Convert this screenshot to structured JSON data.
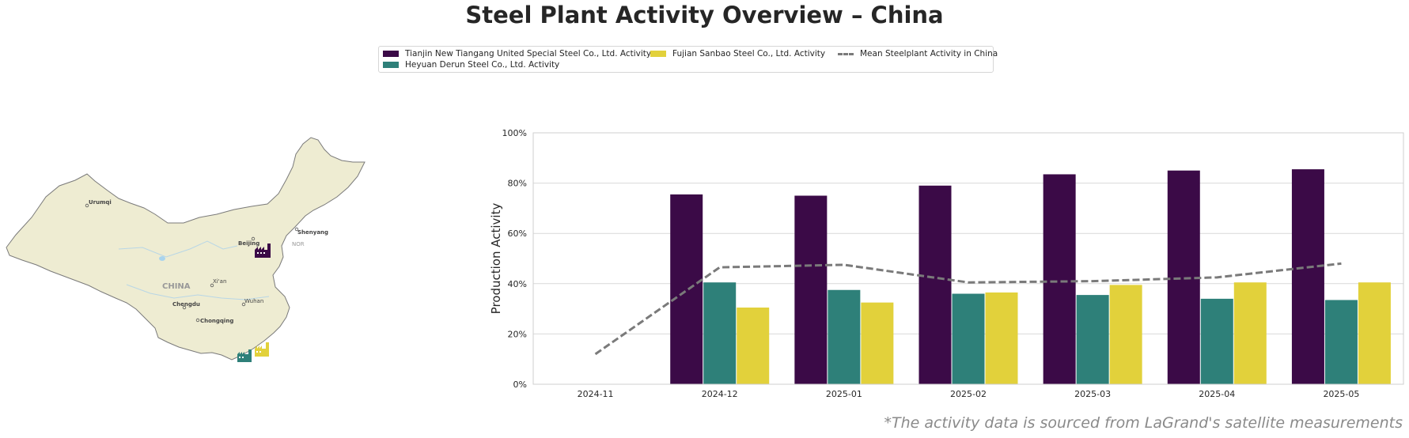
{
  "title": "Steel Plant Activity Overview – China",
  "legend": {
    "items": [
      {
        "label": "Tianjin New Tiangang United Special Steel Co., Ltd. Activity",
        "color": "#3b0a47",
        "kind": "bar"
      },
      {
        "label": "Heyuan Derun Steel Co., Ltd. Activity",
        "color": "#2e8079",
        "kind": "bar"
      },
      {
        "label": "Fujian Sanbao Steel Co., Ltd. Activity",
        "color": "#e2d13b",
        "kind": "bar"
      },
      {
        "label": "Mean Steelplant Activity in China",
        "color": "#7a7a7a",
        "kind": "dashed-line"
      }
    ]
  },
  "map": {
    "cities": [
      "Urumqi",
      "Beijing",
      "Shenyang",
      "Xi'an",
      "Chengdu",
      "Chongqing",
      "Wuhan"
    ],
    "country_label": "CHINA",
    "region_label": "NOR",
    "land_color": "#eeecd2",
    "border_color": "#7a7a7a",
    "plant_icons": [
      {
        "name": "tianjin-plant-icon",
        "color": "#3b0a47"
      },
      {
        "name": "heyuan-plant-icon",
        "color": "#2e8079"
      },
      {
        "name": "fujian-plant-icon",
        "color": "#e2d13b"
      }
    ]
  },
  "chart_data": {
    "type": "bar",
    "ylabel": "Production Activity",
    "ylim": [
      0,
      100
    ],
    "yticks": [
      "0%",
      "20%",
      "40%",
      "60%",
      "80%",
      "100%"
    ],
    "categories": [
      "2024-11",
      "2024-12",
      "2025-01",
      "2025-02",
      "2025-03",
      "2025-04",
      "2025-05"
    ],
    "series": [
      {
        "name": "Tianjin New Tiangang United Special Steel Co., Ltd. Activity",
        "color": "#3b0a47",
        "values": [
          null,
          75.5,
          75,
          79,
          83.5,
          85,
          85.5
        ]
      },
      {
        "name": "Heyuan Derun Steel Co., Ltd. Activity",
        "color": "#2e8079",
        "values": [
          null,
          40.5,
          37.5,
          36,
          35.5,
          34,
          33.5
        ]
      },
      {
        "name": "Fujian Sanbao Steel Co., Ltd. Activity",
        "color": "#e2d13b",
        "values": [
          null,
          30.5,
          32.5,
          36.5,
          39.5,
          40.5,
          40.5
        ]
      }
    ],
    "line": {
      "name": "Mean Steelplant Activity in China",
      "color": "#7a7a7a",
      "values": [
        12,
        46.5,
        47.5,
        40.5,
        41,
        42.5,
        48
      ]
    },
    "grid": true
  },
  "source_note": "*The activity data is sourced from LaGrand's satellite measurements"
}
